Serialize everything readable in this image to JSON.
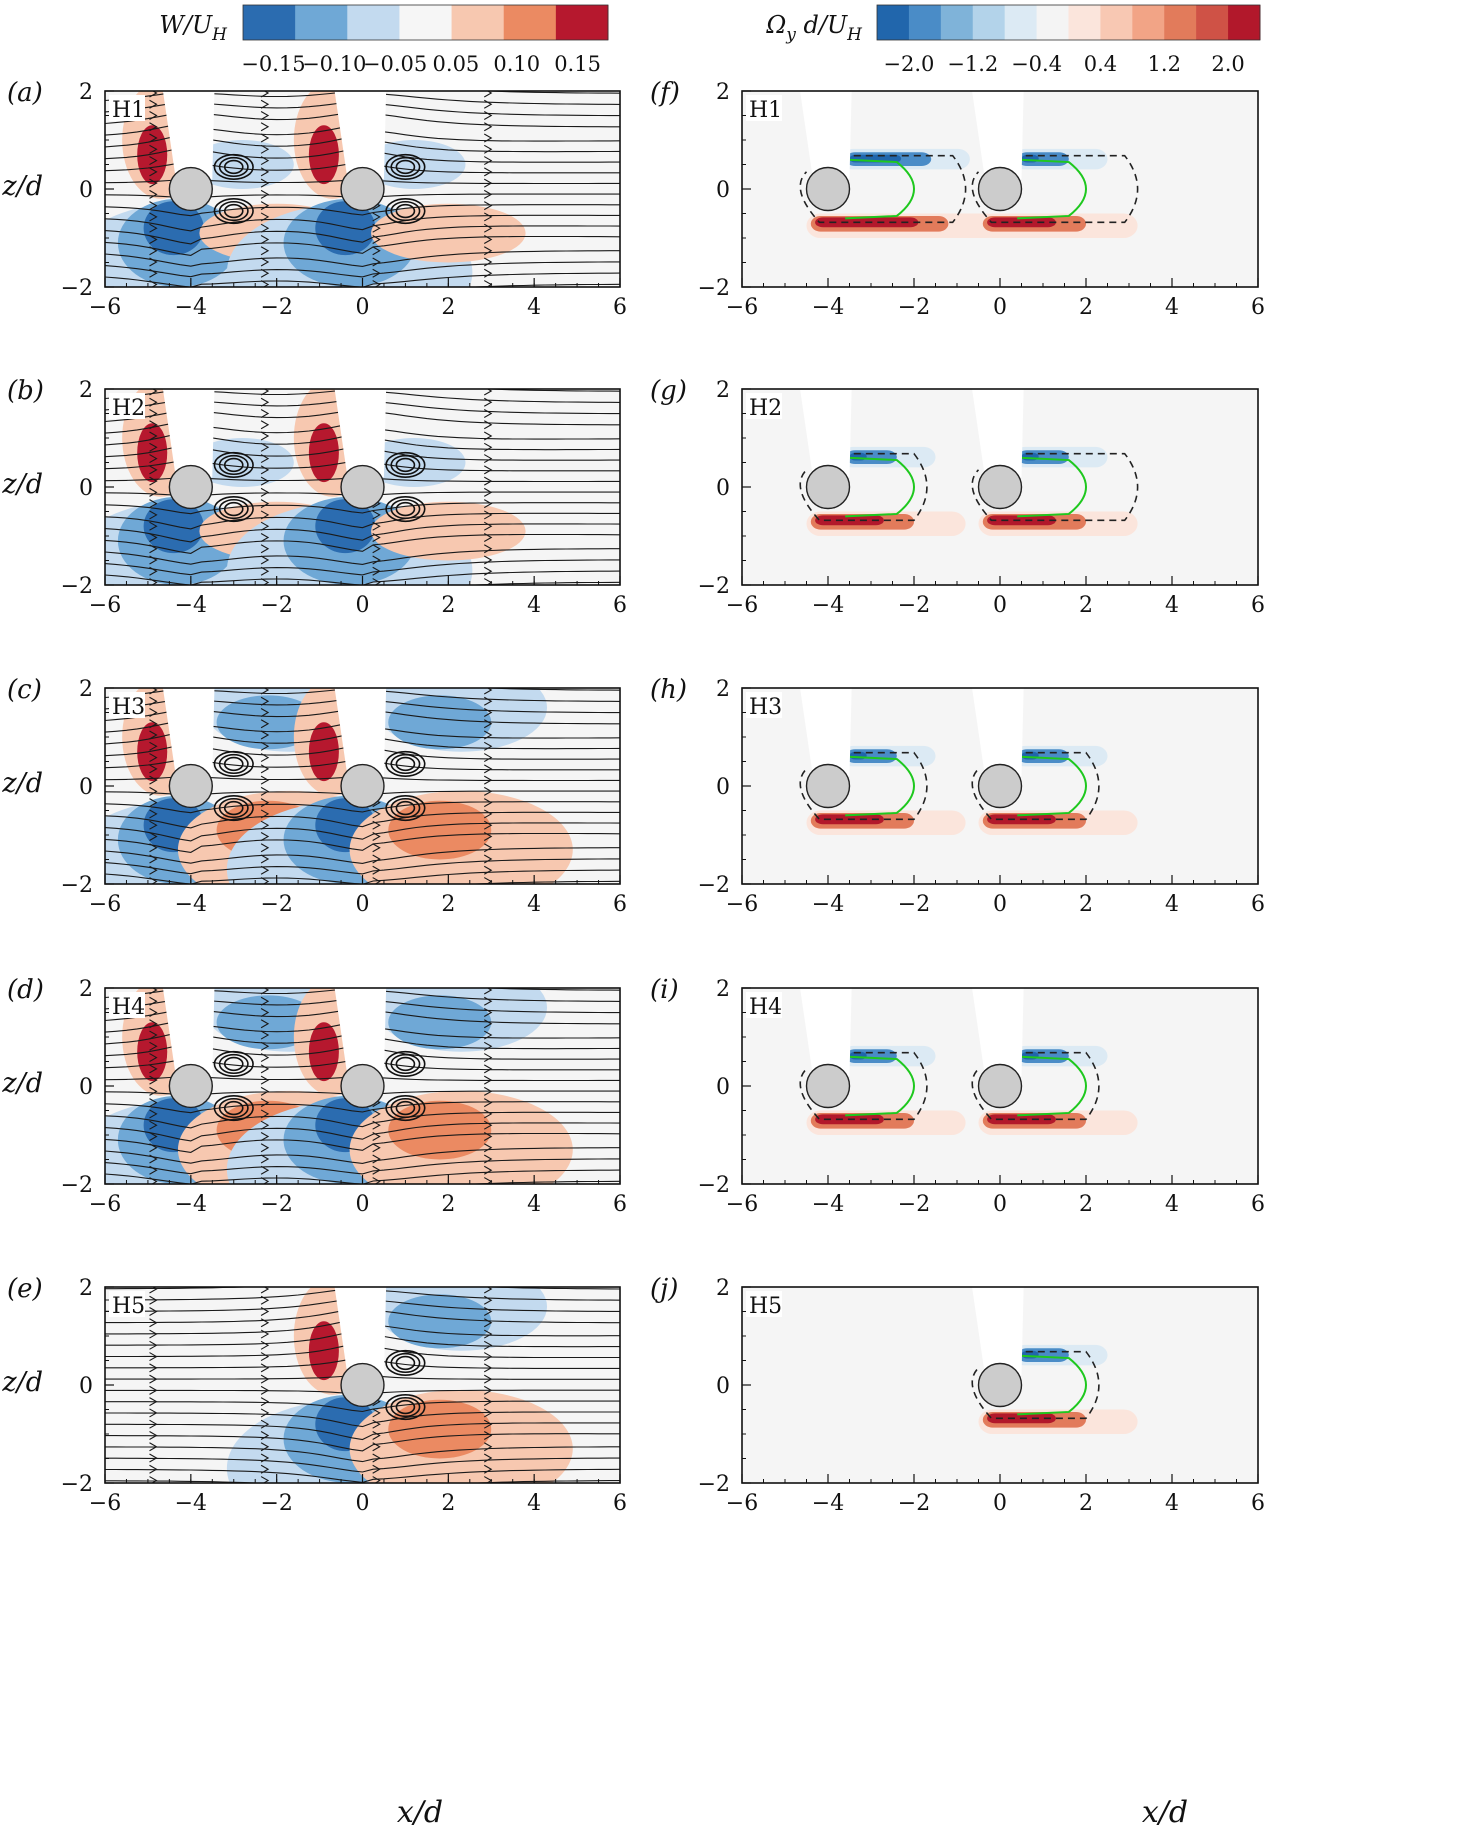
{
  "colorbars": [
    {
      "label_main": "W/U",
      "label_sub": "H",
      "ticks": [
        "−0.15",
        "−0.10",
        "−0.05",
        "0.05",
        "0.10",
        "0.15"
      ],
      "colors": [
        "#2b6cb0",
        "#6fa8d6",
        "#c3daef",
        "#f6f6f6",
        "#f7c8b0",
        "#eb8a62",
        "#b6182e"
      ]
    },
    {
      "label_main": "Ω",
      "label_y": "y",
      "label_mid": " d/U",
      "label_sub": "H",
      "ticks": [
        "−2.0",
        "−1.2",
        "−0.4",
        "0.4",
        "1.2",
        "2.0"
      ],
      "colors": [
        "#2166ac",
        "#4a8cc7",
        "#7fb3d9",
        "#b3d3ea",
        "#dceaf4",
        "#f4f4f4",
        "#fbe5dc",
        "#f8c8b3",
        "#f2a486",
        "#e27b5b",
        "#cf5246",
        "#b2182b"
      ]
    }
  ],
  "axes": {
    "x_ticks": [
      "−6",
      "−4",
      "−2",
      "0",
      "2",
      "4",
      "6"
    ],
    "z_ticks": [
      "2",
      "0",
      "−2"
    ],
    "xlabel": "x/d",
    "zlabel": "z/d"
  },
  "chart_data": [
    {
      "panel": "(a)",
      "case": "H1",
      "quantity": "W/U_H",
      "cylinders_x": [
        -4,
        0
      ],
      "xlim": [
        -6,
        6
      ],
      "zlim": [
        -2,
        2
      ],
      "field": "W/U_H contours with streamlines"
    },
    {
      "panel": "(b)",
      "case": "H2",
      "quantity": "W/U_H",
      "cylinders_x": [
        -4,
        0
      ],
      "xlim": [
        -6,
        6
      ],
      "zlim": [
        -2,
        2
      ],
      "field": "W/U_H contours with streamlines"
    },
    {
      "panel": "(c)",
      "case": "H3",
      "quantity": "W/U_H",
      "cylinders_x": [
        -4,
        0
      ],
      "xlim": [
        -6,
        6
      ],
      "zlim": [
        -2,
        2
      ],
      "field": "W/U_H contours with streamlines"
    },
    {
      "panel": "(d)",
      "case": "H4",
      "quantity": "W/U_H",
      "cylinders_x": [
        -4,
        0
      ],
      "xlim": [
        -6,
        6
      ],
      "zlim": [
        -2,
        2
      ],
      "field": "W/U_H contours with streamlines"
    },
    {
      "panel": "(e)",
      "case": "H5",
      "quantity": "W/U_H",
      "cylinders_x": [
        0
      ],
      "xlim": [
        -6,
        6
      ],
      "zlim": [
        -2,
        2
      ],
      "field": "W/U_H contours with streamlines"
    },
    {
      "panel": "(f)",
      "case": "H1",
      "quantity": "Ω_y d/U_H",
      "cylinders_x": [
        -4,
        0
      ],
      "xlim": [
        -6,
        6
      ],
      "zlim": [
        -2,
        2
      ],
      "field": "vorticity contours"
    },
    {
      "panel": "(g)",
      "case": "H2",
      "quantity": "Ω_y d/U_H",
      "cylinders_x": [
        -4,
        0
      ],
      "xlim": [
        -6,
        6
      ],
      "zlim": [
        -2,
        2
      ],
      "field": "vorticity contours"
    },
    {
      "panel": "(h)",
      "case": "H3",
      "quantity": "Ω_y d/U_H",
      "cylinders_x": [
        -4,
        0
      ],
      "xlim": [
        -6,
        6
      ],
      "zlim": [
        -2,
        2
      ],
      "field": "vorticity contours"
    },
    {
      "panel": "(i)",
      "case": "H4",
      "quantity": "Ω_y d/U_H",
      "cylinders_x": [
        -4,
        0
      ],
      "xlim": [
        -6,
        6
      ],
      "zlim": [
        -2,
        2
      ],
      "field": "vorticity contours"
    },
    {
      "panel": "(j)",
      "case": "H5",
      "quantity": "Ω_y d/U_H",
      "cylinders_x": [
        0
      ],
      "xlim": [
        -6,
        6
      ],
      "zlim": [
        -2,
        2
      ],
      "field": "vorticity contours"
    }
  ],
  "colors": {
    "blue_strong": "#2b6cb0",
    "blue_light": "#c3daef",
    "red_strong": "#b6182e",
    "red_light": "#f7c8b0",
    "cylinder_fill": "#cccccc",
    "green_contour": "#1ec81e",
    "panel_bg": "#f5f5f5"
  }
}
